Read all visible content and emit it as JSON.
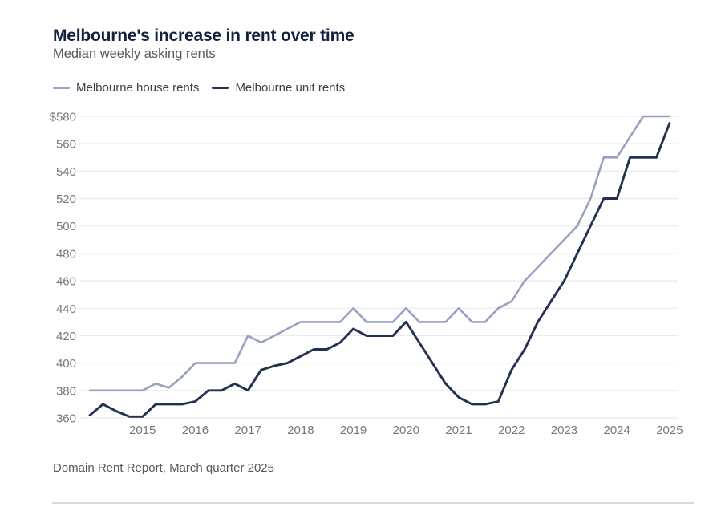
{
  "header": {
    "title": "Melbourne's increase in rent over time",
    "subtitle": "Median weekly asking rents"
  },
  "footer": {
    "source": "Domain Rent Report, March quarter 2025"
  },
  "colors": {
    "title": "#14213d",
    "muted_text": "#55595e",
    "axis_text": "#75797f",
    "gridline": "#eaebed",
    "house_line": "#98a2c0",
    "unit_line": "#233050"
  },
  "chart_data": {
    "type": "line",
    "title": "Melbourne's increase in rent over time",
    "subtitle": "Median weekly asking rents",
    "x_unit": "quarter",
    "x_start": "2014 Q1",
    "x_end": "2025 Q1",
    "x_tick_labels": [
      "2015",
      "2016",
      "2017",
      "2018",
      "2019",
      "2020",
      "2021",
      "2022",
      "2023",
      "2024",
      "2025"
    ],
    "y_ticks": [
      360,
      380,
      400,
      420,
      440,
      460,
      480,
      500,
      520,
      540,
      560,
      580
    ],
    "y_tick_labels": [
      "360",
      "380",
      "400",
      "420",
      "440",
      "460",
      "480",
      "500",
      "520",
      "540",
      "560",
      "$580"
    ],
    "ylim": [
      355,
      585
    ],
    "grid": "horizontal",
    "legend_position": "top",
    "series": [
      {
        "name": "Melbourne house rents",
        "color": "#98a2c0",
        "values": [
          380,
          380,
          380,
          380,
          380,
          385,
          382,
          390,
          400,
          400,
          400,
          400,
          420,
          415,
          420,
          425,
          430,
          430,
          430,
          430,
          440,
          430,
          430,
          430,
          440,
          430,
          430,
          430,
          440,
          430,
          430,
          440,
          445,
          460,
          470,
          480,
          490,
          500,
          520,
          550,
          550,
          565,
          580,
          580,
          580
        ]
      },
      {
        "name": "Melbourne unit rents",
        "color": "#233050",
        "values": [
          362,
          370,
          365,
          361,
          361,
          370,
          370,
          370,
          372,
          380,
          380,
          385,
          380,
          395,
          398,
          400,
          405,
          410,
          410,
          415,
          425,
          420,
          420,
          420,
          430,
          415,
          400,
          385,
          375,
          370,
          370,
          372,
          395,
          410,
          430,
          445,
          460,
          480,
          500,
          520,
          520,
          550,
          550,
          550,
          575
        ]
      }
    ]
  }
}
